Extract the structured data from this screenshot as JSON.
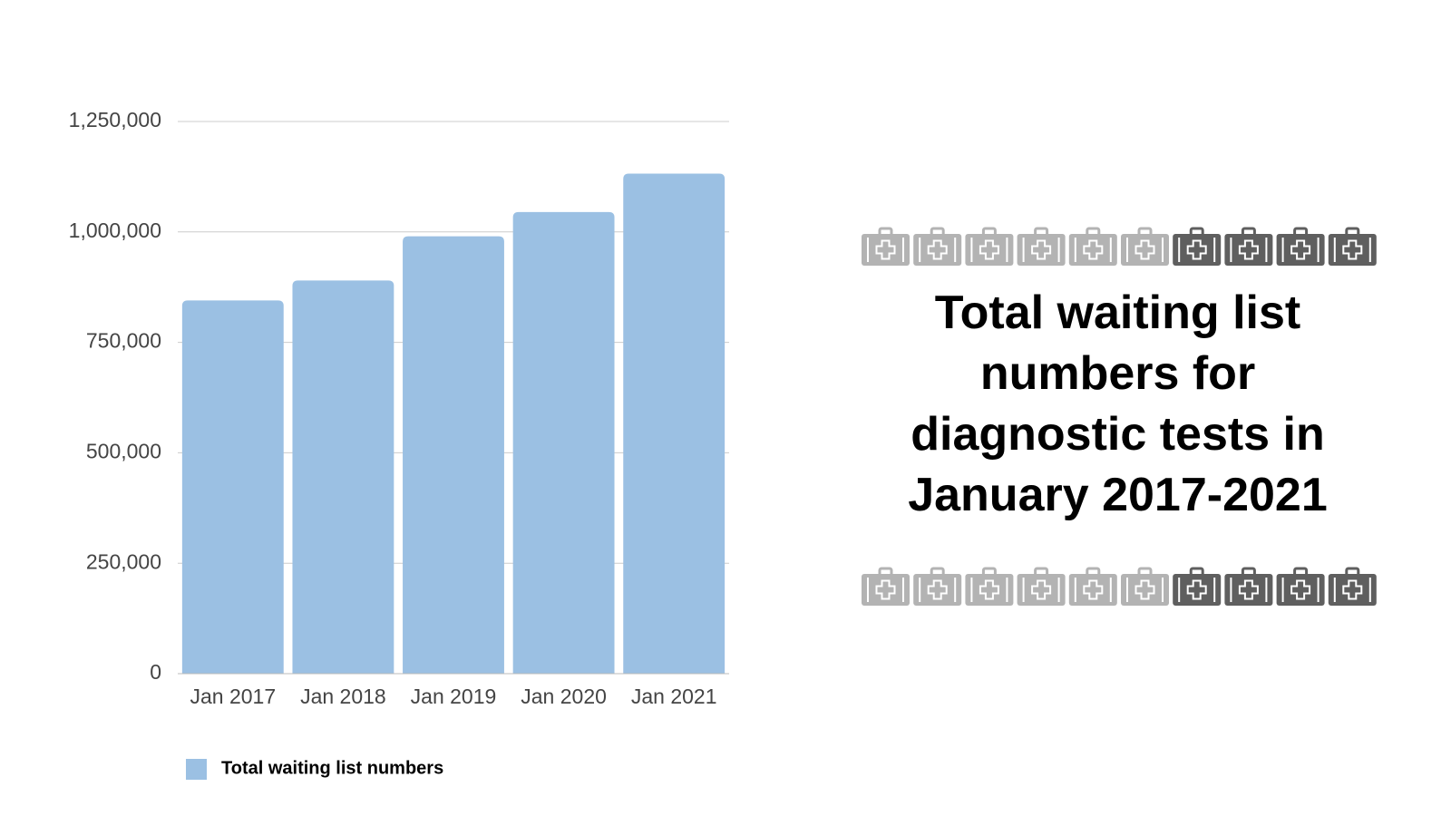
{
  "chart_data": {
    "type": "bar",
    "title": "Total waiting list numbers for diagnostic tests in January 2017-2021",
    "categories": [
      "Jan 2017",
      "Jan 2018",
      "Jan 2019",
      "Jan 2020",
      "Jan 2021"
    ],
    "series": [
      {
        "name": "Total waiting list numbers",
        "color": "#9bc0e3",
        "values": [
          845000,
          890000,
          990000,
          1045000,
          1132000
        ]
      }
    ],
    "ylim": [
      0,
      1250000
    ],
    "yticks": [
      0,
      {
        "value": 250000,
        "label": "250,000"
      },
      {
        "value": 500000,
        "label": "500,000"
      },
      {
        "value": 750000,
        "label": "750,000"
      },
      {
        "value": 1000000,
        "label": "1,000,000"
      },
      {
        "value": 1250000,
        "label": "1,250,000"
      }
    ],
    "grid": true
  }
}
